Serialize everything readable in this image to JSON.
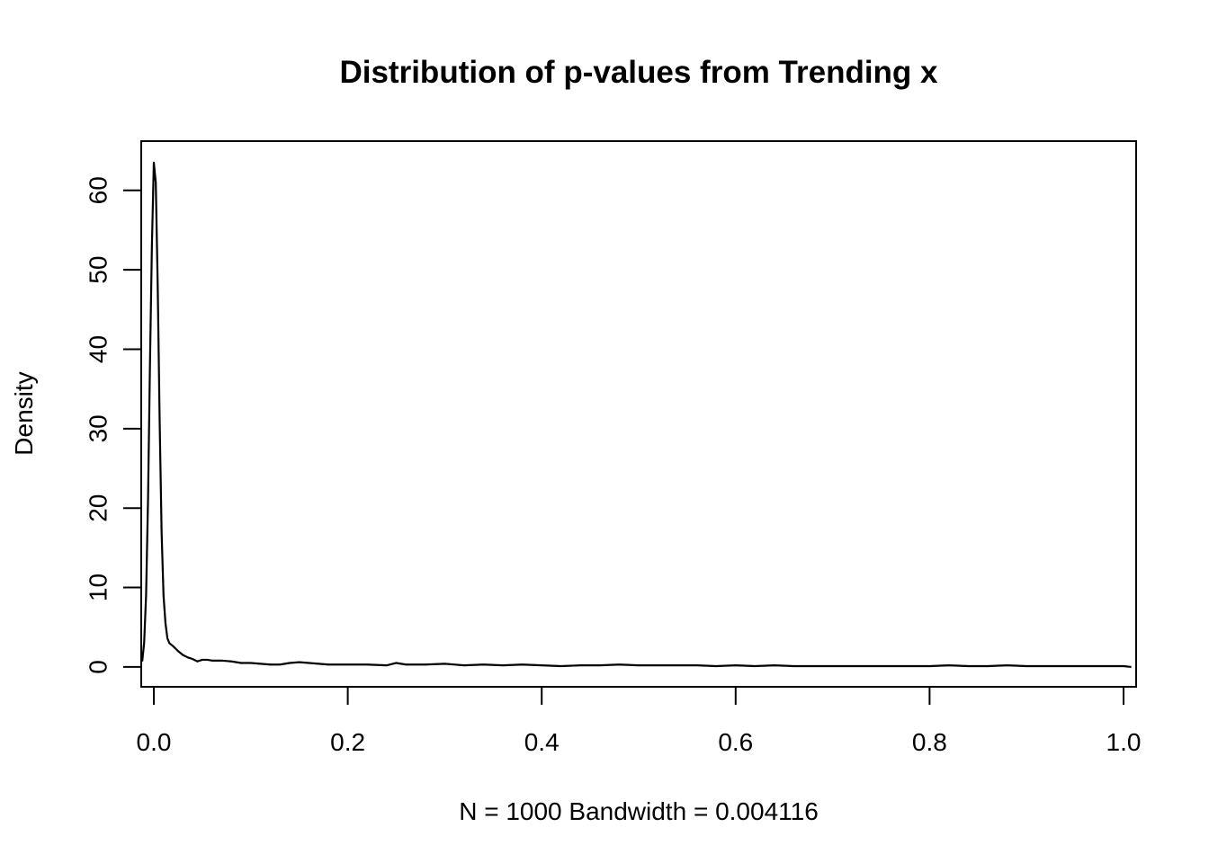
{
  "chart_data": {
    "type": "line",
    "title": "Distribution of p-values from Trending x",
    "xlabel": "N = 1000   Bandwidth = 0.004116",
    "ylabel": "Density",
    "xlim": [
      -0.013,
      1.013
    ],
    "ylim": [
      -2.5,
      66.2
    ],
    "x_ticks": [
      0.0,
      0.2,
      0.4,
      0.6,
      0.8,
      1.0
    ],
    "x_tick_labels": [
      "0.0",
      "0.2",
      "0.4",
      "0.6",
      "0.8",
      "1.0"
    ],
    "y_ticks": [
      0,
      10,
      20,
      30,
      40,
      50,
      60
    ],
    "y_tick_labels": [
      "0",
      "10",
      "20",
      "30",
      "40",
      "50",
      "60"
    ],
    "grid": false,
    "legend": "none",
    "series": [
      {
        "x": [
          -0.012,
          -0.01,
          -0.008,
          -0.006,
          -0.004,
          -0.002,
          0.0,
          0.002,
          0.004,
          0.006,
          0.008,
          0.01,
          0.012,
          0.014,
          0.016,
          0.02,
          0.025,
          0.03,
          0.035,
          0.04,
          0.045,
          0.05,
          0.055,
          0.06,
          0.07,
          0.08,
          0.09,
          0.1,
          0.11,
          0.12,
          0.13,
          0.14,
          0.15,
          0.16,
          0.17,
          0.18,
          0.19,
          0.2,
          0.22,
          0.24,
          0.25,
          0.26,
          0.28,
          0.3,
          0.32,
          0.34,
          0.36,
          0.38,
          0.4,
          0.42,
          0.44,
          0.46,
          0.48,
          0.5,
          0.52,
          0.54,
          0.56,
          0.58,
          0.6,
          0.62,
          0.64,
          0.66,
          0.68,
          0.7,
          0.72,
          0.74,
          0.76,
          0.78,
          0.8,
          0.82,
          0.84,
          0.86,
          0.88,
          0.9,
          0.92,
          0.94,
          0.96,
          0.98,
          1.0,
          1.008
        ],
        "y": [
          0.7,
          3.0,
          9.0,
          21.0,
          38.0,
          53.0,
          63.5,
          61.0,
          48.0,
          31.0,
          17.0,
          9.0,
          5.5,
          3.6,
          3.0,
          2.6,
          2.0,
          1.5,
          1.2,
          1.0,
          0.7,
          0.9,
          0.9,
          0.8,
          0.8,
          0.7,
          0.5,
          0.5,
          0.4,
          0.3,
          0.3,
          0.5,
          0.6,
          0.5,
          0.4,
          0.3,
          0.3,
          0.3,
          0.3,
          0.2,
          0.5,
          0.3,
          0.3,
          0.4,
          0.2,
          0.3,
          0.2,
          0.3,
          0.2,
          0.1,
          0.2,
          0.2,
          0.3,
          0.2,
          0.2,
          0.2,
          0.2,
          0.1,
          0.2,
          0.1,
          0.2,
          0.1,
          0.1,
          0.1,
          0.1,
          0.1,
          0.1,
          0.1,
          0.1,
          0.2,
          0.1,
          0.1,
          0.2,
          0.1,
          0.1,
          0.1,
          0.1,
          0.1,
          0.1,
          0.0
        ]
      }
    ]
  }
}
